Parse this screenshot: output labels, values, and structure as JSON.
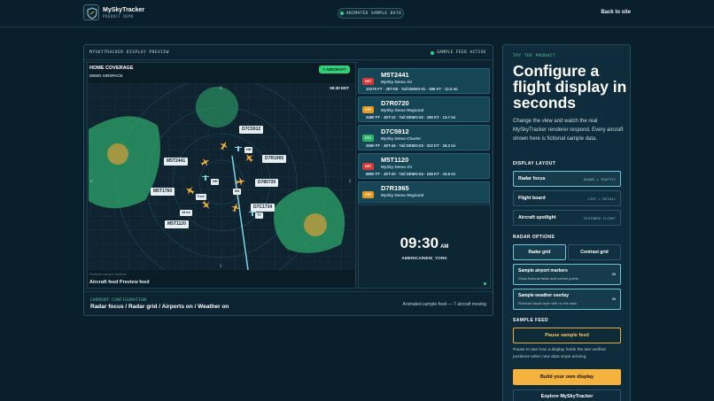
{
  "header": {
    "brand_name": "MySkyTracker",
    "brand_sub": "PRODUCT DEMO",
    "animated_pill": "ANIMATED SAMPLE DATA",
    "back_link": "Back to site"
  },
  "preview": {
    "title": "MYSKYTRACKER DISPLAY PREVIEW",
    "feed_status": "SAMPLE FEED ACTIVE",
    "coverage_title": "HOME COVERAGE",
    "coverage_sub": "DEMO AIRSPACE",
    "aircraft_count": "7 AIRCRAFT",
    "radar_time": "09:30 EDT",
    "fictional_note": "Fictional sample weather",
    "feed_title": "Aircraft feed Preview feed",
    "plane_labels": [
      "M5T2441",
      "D7C5912",
      "D7R1965",
      "D780720",
      "M5T1760",
      "D7C1734",
      "M5T1120"
    ],
    "small_tags": [
      "HH",
      "HH",
      "SH",
      "9 mi",
      "19 mi",
      "TT"
    ],
    "flights": [
      {
        "tag": "MST",
        "color": "#d23a3a",
        "callsign": "M5T2441",
        "operator": "MySky Demo Air",
        "details": "10275 FT · JET-08 · Tail DEMO-01 · 286 KT · 12.4 mi"
      },
      {
        "tag": "D7R",
        "color": "#e29a25",
        "callsign": "D7R0720",
        "operator": "MySky Demo Regional",
        "details": "3490 FT · JET-12 · Tail DEMO-02 · 190 KT · 13.7 mi"
      },
      {
        "tag": "D7C",
        "color": "#2fb36a",
        "callsign": "D7C5912",
        "operator": "MySky Demo Charter",
        "details": "2550 FT · JET-45 · Tail DEMO-03 · 222 KT · 18.2 mi"
      },
      {
        "tag": "MST",
        "color": "#d23a3a",
        "callsign": "M5T1120",
        "operator": "MySky Demo Air",
        "details": "6800 FT · JET-20 · Tail DEMO-04 · 246 KT · 15.9 mi"
      },
      {
        "tag": "D7R",
        "color": "#e29a25",
        "callsign": "D7R1965",
        "operator": "MySky Demo Regional",
        "details": ""
      }
    ],
    "clock_time": "09:30",
    "clock_ampm": "AM",
    "timezone": "AMERICA/NEW_YORK",
    "current_config_label": "CURRENT CONFIGURATION",
    "current_config_value": "Radar focus / Radar grid / Airports on / Weather on",
    "sample_note": "Animated sample feed — 7 aircraft moving"
  },
  "config": {
    "eyebrow": "TRY THE PRODUCT",
    "headline": "Configure a flight display in seconds",
    "description": "Change the view and watch the real MySkyTracker renderer respond. Every aircraft shown here is fictional sample data.",
    "display_layout_label": "DISPLAY LAYOUT",
    "layouts": [
      {
        "name": "Radar focus",
        "tag": "RADAR + TRAFFIC"
      },
      {
        "name": "Flight board",
        "tag": "LIST + DETAIL"
      },
      {
        "name": "Aircraft spotlight",
        "tag": "FEATURED FLIGHT"
      }
    ],
    "radar_options_label": "RADAR OPTIONS",
    "radar_grid": "Radar grid",
    "contrast_grid": "Contrast grid",
    "airports_name": "Sample airport markers",
    "airports_sub": "Show fictional fields and control points",
    "weather_name": "Sample weather overlay",
    "weather_sub": "Fictional visual layer with no live data",
    "toggle_on": "ON",
    "sample_feed_label": "SAMPLE FEED",
    "pause_button": "Pause sample feed",
    "pause_note": "Pause to see how a display holds the last verified positions when new data stops arriving.",
    "build_button": "Build your own display",
    "explore_button": "Explore MySkyTracker"
  }
}
